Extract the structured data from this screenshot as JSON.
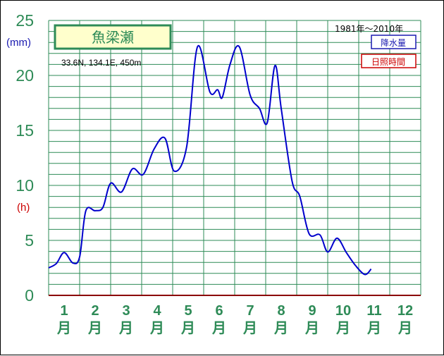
{
  "chart_data": {
    "type": "line",
    "station_name": "魚梁瀬",
    "location": "33.6N,  134.1E,  450m",
    "period": "1981年～2010年",
    "unit_precip": "(mm)",
    "unit_sunshine": "(h)",
    "legend": {
      "precip": "降水量",
      "sunshine": "日照時間"
    },
    "ylim": [
      0,
      25
    ],
    "yticks": [
      "0",
      "5",
      "10",
      "15",
      "20",
      "25"
    ],
    "months": [
      "1",
      "2",
      "3",
      "4",
      "5",
      "6",
      "7",
      "8",
      "9",
      "10",
      "11",
      "12"
    ],
    "month_char": "月",
    "grid": true,
    "series": [
      {
        "name": "降水量",
        "color": "#0000cc",
        "points": [
          [
            0.0,
            2.5
          ],
          [
            0.25,
            2.9
          ],
          [
            0.5,
            3.9
          ],
          [
            0.78,
            2.95
          ],
          [
            1.0,
            3.5
          ],
          [
            1.2,
            7.7
          ],
          [
            1.5,
            7.7
          ],
          [
            1.75,
            8.0
          ],
          [
            2.0,
            10.2
          ],
          [
            2.35,
            9.4
          ],
          [
            2.7,
            11.5
          ],
          [
            3.05,
            11.0
          ],
          [
            3.4,
            13.3
          ],
          [
            3.75,
            14.3
          ],
          [
            4.05,
            11.3
          ],
          [
            4.45,
            13.5
          ],
          [
            4.8,
            22.6
          ],
          [
            5.2,
            18.5
          ],
          [
            5.45,
            18.7
          ],
          [
            5.6,
            18.0
          ],
          [
            5.85,
            21.0
          ],
          [
            6.15,
            22.6
          ],
          [
            6.5,
            18.2
          ],
          [
            6.8,
            17.0
          ],
          [
            7.05,
            15.7
          ],
          [
            7.3,
            20.9
          ],
          [
            7.5,
            17.0
          ],
          [
            7.85,
            10.4
          ],
          [
            8.1,
            9.0
          ],
          [
            8.4,
            5.6
          ],
          [
            8.75,
            5.5
          ],
          [
            9.0,
            3.95
          ],
          [
            9.3,
            5.2
          ],
          [
            9.6,
            3.9
          ],
          [
            9.9,
            2.7
          ],
          [
            10.2,
            1.9
          ],
          [
            10.4,
            2.4
          ]
        ]
      }
    ]
  }
}
